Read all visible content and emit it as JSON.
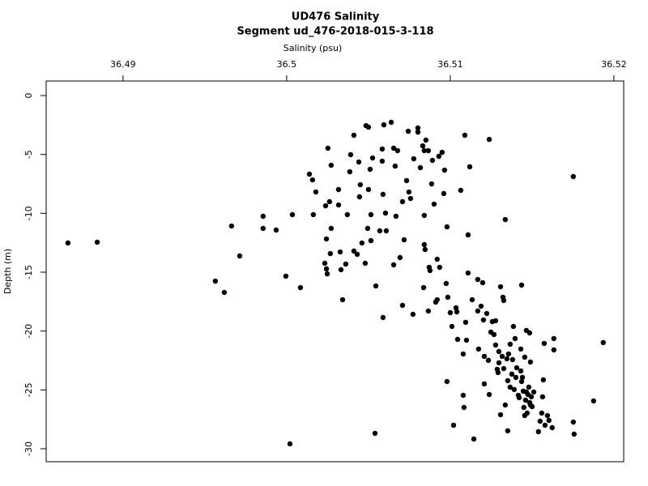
{
  "chart_data": {
    "type": "scatter",
    "title": "UD476 Salinity",
    "subtitle": "Segment ud_476-2018-015-3-118",
    "x_label": "Salinity (psu)",
    "y_label": "Depth (m)",
    "color": "#000000",
    "xlim": [
      36.4853,
      36.5206
    ],
    "ylim": [
      -31.1,
      1.24
    ],
    "xticks": [
      36.49,
      36.5,
      36.51,
      36.52
    ],
    "yticks": [
      0,
      -5,
      -10,
      -15,
      -20,
      -25,
      -30
    ],
    "x": [
      36.48663,
      36.48842,
      36.49663,
      36.49713,
      36.49564,
      36.49619,
      36.49856,
      36.49856,
      36.49936,
      36.49995,
      36.50035,
      36.50084,
      36.5002,
      36.5054,
      36.50139,
      36.50158,
      36.50178,
      36.50163,
      36.50252,
      36.50272,
      36.50238,
      36.50262,
      36.50272,
      36.50243,
      36.50267,
      36.50233,
      36.50243,
      36.50248,
      36.50317,
      36.50317,
      36.50327,
      36.50332,
      36.50361,
      36.50342,
      36.50371,
      36.50391,
      36.50411,
      36.50386,
      36.50411,
      36.50431,
      36.50441,
      36.5045,
      36.50445,
      36.5046,
      36.50485,
      36.505,
      36.5051,
      36.505,
      36.50525,
      36.50515,
      36.50495,
      36.50515,
      36.5048,
      36.50545,
      36.50569,
      36.50584,
      36.50594,
      36.50584,
      36.50589,
      36.50604,
      36.50609,
      36.50589,
      36.50639,
      36.50654,
      36.50663,
      36.50678,
      36.50668,
      36.50654,
      36.50708,
      36.50693,
      36.50718,
      36.50708,
      36.50733,
      36.50743,
      36.50747,
      36.50757,
      36.50777,
      36.50772,
      36.50802,
      36.50802,
      36.50817,
      36.50832,
      36.50851,
      36.50841,
      36.50866,
      36.50841,
      36.50841,
      36.50846,
      36.50871,
      36.50876,
      36.50837,
      36.50866,
      36.50891,
      36.50901,
      36.50886,
      36.5092,
      36.50911,
      36.5093,
      36.5095,
      36.50965,
      36.5096,
      36.5092,
      36.50935,
      36.50975,
      36.5098,
      36.50985,
      36.51,
      36.5101,
      36.5098,
      36.5102,
      36.5104,
      36.51035,
      36.51045,
      36.51064,
      36.51079,
      36.51079,
      36.51084,
      36.51094,
      36.51099,
      36.51089,
      36.51109,
      36.51119,
      36.51109,
      36.51134,
      36.51144,
      36.51168,
      36.51168,
      36.51173,
      36.51188,
      36.51198,
      36.51203,
      36.51208,
      36.51208,
      36.51223,
      36.51238,
      36.51233,
      36.51238,
      36.51248,
      36.51257,
      36.51267,
      36.51277,
      36.51277,
      36.51287,
      36.51292,
      36.51297,
      36.51297,
      36.51307,
      36.51307,
      36.51317,
      36.51322,
      36.51327,
      36.51327,
      36.51336,
      36.51336,
      36.51346,
      36.51351,
      36.51351,
      36.51356,
      36.51366,
      36.51366,
      36.51376,
      36.51381,
      36.51386,
      36.51391,
      36.51396,
      36.51401,
      36.51406,
      36.51416,
      36.51421,
      36.51431,
      36.51431,
      36.51436,
      36.51436,
      36.51441,
      36.51446,
      36.5145,
      36.51455,
      36.51455,
      36.5146,
      36.51465,
      36.51465,
      36.5147,
      36.51475,
      36.5148,
      36.51485,
      36.51485,
      36.5149,
      36.5149,
      36.51495,
      36.515,
      36.5151,
      36.51539,
      36.51549,
      36.51559,
      36.51564,
      36.51569,
      36.51574,
      36.51579,
      36.51594,
      36.51603,
      36.51623,
      36.51633,
      36.51633,
      36.51752,
      36.51752,
      36.51757,
      36.51876,
      36.51935
    ],
    "y": [
      -12.52,
      -12.45,
      -11.08,
      -13.62,
      -15.76,
      -16.72,
      -10.25,
      -11.28,
      -11.42,
      -15.34,
      -10.11,
      -16.31,
      -29.58,
      -28.69,
      -6.67,
      -7.16,
      -8.19,
      -10.11,
      -4.47,
      -5.92,
      -9.36,
      -9.01,
      -11.28,
      -12.18,
      -13.42,
      -14.24,
      -14.72,
      -15.14,
      -7.98,
      -9.29,
      -13.28,
      -14.79,
      -14.31,
      -17.34,
      -10.11,
      -5.02,
      -3.37,
      -6.47,
      -13.21,
      -13.48,
      -5.64,
      -7.57,
      -8.6,
      -12.52,
      -2.55,
      -2.68,
      -6.26,
      -7.98,
      -5.3,
      -10.11,
      -11.28,
      -12.32,
      -14.24,
      -16.17,
      -11.49,
      -4.54,
      -2.48,
      -5.57,
      -8.39,
      -9.98,
      -11.49,
      -18.85,
      -2.27,
      -4.47,
      -5.99,
      -4.68,
      -10.25,
      -14.38,
      -9.01,
      -13.76,
      -12.25,
      -17.82,
      -7.22,
      -3.03,
      -8.19,
      -8.74,
      -5.37,
      -18.58,
      -2.75,
      -3.1,
      -6.12,
      -4.27,
      -3.78,
      -4.68,
      -4.68,
      -10.18,
      -12.66,
      -13.07,
      -14.59,
      -14.86,
      -16.31,
      -18.3,
      -5.5,
      -9.22,
      -7.5,
      -17.34,
      -17.54,
      -5.16,
      -4.82,
      -6.33,
      -8.32,
      -13.9,
      -14.59,
      -15.96,
      -11.15,
      -17.13,
      -18.44,
      -19.61,
      -24.29,
      -28.0,
      -18.37,
      -18.03,
      -20.71,
      -8.05,
      -21.95,
      -25.46,
      -26.49,
      -19.26,
      -20.78,
      -3.37,
      -11.83,
      -6.05,
      -15.07,
      -17.34,
      -29.17,
      -15.62,
      -18.3,
      -21.53,
      -17.89,
      -15.89,
      -19.06,
      -22.15,
      -24.49,
      -18.51,
      -3.72,
      -22.49,
      -25.39,
      -20.09,
      -19.2,
      -20.3,
      -19.13,
      -21.19,
      -23.25,
      -23.53,
      -21.74,
      -22.7,
      -16.24,
      -27.11,
      -22.15,
      -17.13,
      -17.41,
      -23.19,
      -10.53,
      -26.28,
      -22.36,
      -24.22,
      -28.48,
      -21.95,
      -21.12,
      -24.77,
      -23.66,
      -22.43,
      -19.61,
      -24.97,
      -20.64,
      -23.94,
      -23.12,
      -25.46,
      -25.66,
      -21.53,
      -23.39,
      -16.1,
      -24.29,
      -23.94,
      -25.11,
      -26.49,
      -22.22,
      -27.18,
      -25.87,
      -19.95,
      -25.18,
      -26.97,
      -25.39,
      -24.77,
      -20.16,
      -26.08,
      -22.63,
      -26.28,
      -25.59,
      -26.42,
      -25.18,
      -28.55,
      -27.66,
      -26.97,
      -25.59,
      -24.15,
      -21.05,
      -28.0,
      -27.18,
      -27.59,
      -28.21,
      -20.64,
      -21.6,
      -6.88,
      -27.73,
      -28.76,
      -25.94,
      -20.98
    ]
  }
}
